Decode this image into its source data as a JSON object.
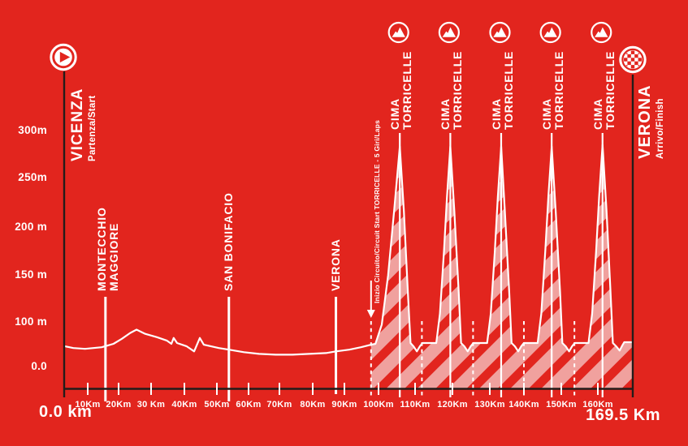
{
  "colors": {
    "background": "#e2251e",
    "foreground": "#ffffff",
    "hatch_pink": "#f0a19e",
    "line_dark": "#241c1a"
  },
  "start": {
    "city": "VICENZA",
    "subtitle": "Partenza/Start",
    "km_label": "0.0 km",
    "icon": "play-icon"
  },
  "finish": {
    "city": "VERONA",
    "subtitle": "Arrivo/Finish",
    "km_label": "169.5 Km",
    "icon": "checkered-flag-icon"
  },
  "axis": {
    "y_labels": [
      "300m",
      "250m",
      "200 m",
      "150 m",
      "100 m",
      "0.0"
    ],
    "x_tick_labels": [
      "10Km",
      "20Km",
      "30 Km",
      "40Km",
      "50Km",
      "60Km",
      "70Km",
      "80Km",
      "90Km",
      "100Km",
      "110Km",
      "120Km",
      "130Km",
      "140Km",
      "150Km",
      "160Km"
    ]
  },
  "chart_data": {
    "type": "area",
    "x_unit": "km",
    "y_unit": "m",
    "total_distance_km": 169.5,
    "x_ticks_km": [
      10,
      20,
      30,
      40,
      50,
      60,
      70,
      80,
      90,
      100,
      110,
      120,
      130,
      140,
      150,
      160
    ],
    "y_ticks_m": [
      300,
      250,
      200,
      150,
      100,
      0
    ],
    "start": {
      "name": "VICENZA",
      "label": "Partenza/Start",
      "km": 0
    },
    "finish": {
      "name": "VERONA",
      "label": "Arrivo/Finish",
      "km": 169.5
    },
    "waypoints": [
      {
        "lines": [
          "MONTECCHIO",
          "MAGGIORE"
        ],
        "km": 12.1
      },
      {
        "lines": [
          "SAN BONIFACIO"
        ],
        "km": 49.0
      },
      {
        "lines": [
          "VERONA"
        ],
        "km": 81.0
      }
    ],
    "circuit": {
      "label": "Inizio Circuito/Circuit Start TORRICELLE - 5 Giri/Laps",
      "start_km": 91.5,
      "laps": 5,
      "lap_lines_km": [
        91.5,
        106.7,
        122.0,
        137.2,
        152.3
      ]
    },
    "climbs": [
      {
        "lines": [
          "CIMA",
          "TORRICELLE"
        ],
        "summit_km": 100.1,
        "summit_m": 285,
        "icon": "mountain-icon"
      },
      {
        "lines": [
          "CIMA",
          "TORRICELLE"
        ],
        "summit_km": 115.2,
        "summit_m": 285,
        "icon": "mountain-icon"
      },
      {
        "lines": [
          "CIMA",
          "TORRICELLE"
        ],
        "summit_km": 130.4,
        "summit_m": 285,
        "icon": "mountain-icon"
      },
      {
        "lines": [
          "CIMA",
          "TORRICELLE"
        ],
        "summit_km": 145.5,
        "summit_m": 285,
        "icon": "mountain-icon"
      },
      {
        "lines": [
          "CIMA",
          "TORRICELLE"
        ],
        "summit_km": 160.7,
        "summit_m": 287,
        "icon": "mountain-icon"
      }
    ],
    "profile": [
      [
        0,
        46
      ],
      [
        2.5,
        44
      ],
      [
        6,
        43
      ],
      [
        11,
        45
      ],
      [
        14.5,
        49
      ],
      [
        17,
        55
      ],
      [
        19.5,
        62
      ],
      [
        21.4,
        66
      ],
      [
        24,
        61
      ],
      [
        27.5,
        57
      ],
      [
        30.4,
        53
      ],
      [
        31.8,
        49
      ],
      [
        32.5,
        56
      ],
      [
        33.5,
        50
      ],
      [
        36.4,
        46
      ],
      [
        38.6,
        40
      ],
      [
        40.3,
        56
      ],
      [
        41.5,
        48
      ],
      [
        46,
        44
      ],
      [
        49,
        42
      ],
      [
        53.5,
        39
      ],
      [
        58,
        37
      ],
      [
        63,
        36
      ],
      [
        68,
        36
      ],
      [
        73,
        37
      ],
      [
        78,
        38
      ],
      [
        81,
        40
      ],
      [
        85,
        42
      ],
      [
        88.5,
        45
      ],
      [
        91.5,
        48
      ],
      [
        92.8,
        49
      ],
      [
        94.7,
        72
      ],
      [
        96.6,
        131
      ],
      [
        98.4,
        208
      ],
      [
        100.1,
        285
      ],
      [
        101.3,
        208
      ],
      [
        102.5,
        111
      ],
      [
        103.3,
        50
      ],
      [
        104.2,
        46
      ],
      [
        105.2,
        40
      ],
      [
        106.1,
        46
      ],
      [
        106.9,
        50
      ],
      [
        111.0,
        50
      ],
      [
        112.1,
        85
      ],
      [
        113.3,
        160
      ],
      [
        114.2,
        225
      ],
      [
        115.2,
        285
      ],
      [
        116.4,
        208
      ],
      [
        117.7,
        111
      ],
      [
        118.4,
        50
      ],
      [
        119.4,
        46
      ],
      [
        120.4,
        40
      ],
      [
        121.3,
        46
      ],
      [
        122.1,
        50
      ],
      [
        126.2,
        50
      ],
      [
        127.3,
        85
      ],
      [
        128.5,
        160
      ],
      [
        129.4,
        225
      ],
      [
        130.4,
        285
      ],
      [
        131.5,
        208
      ],
      [
        132.8,
        111
      ],
      [
        133.5,
        50
      ],
      [
        134.5,
        46
      ],
      [
        135.5,
        40
      ],
      [
        136.4,
        46
      ],
      [
        137.2,
        50
      ],
      [
        141.3,
        50
      ],
      [
        142.4,
        85
      ],
      [
        143.6,
        160
      ],
      [
        144.5,
        225
      ],
      [
        145.5,
        285
      ],
      [
        146.7,
        208
      ],
      [
        148.0,
        111
      ],
      [
        148.7,
        50
      ],
      [
        149.7,
        46
      ],
      [
        150.7,
        40
      ],
      [
        151.6,
        46
      ],
      [
        152.4,
        50
      ],
      [
        156.5,
        50
      ],
      [
        157.6,
        85
      ],
      [
        158.8,
        160
      ],
      [
        159.7,
        225
      ],
      [
        160.7,
        287
      ],
      [
        161.9,
        208
      ],
      [
        163.1,
        111
      ],
      [
        163.8,
        50
      ],
      [
        164.8,
        46
      ],
      [
        165.8,
        41
      ],
      [
        166.6,
        47
      ],
      [
        167.2,
        51
      ],
      [
        169.5,
        51
      ]
    ]
  }
}
